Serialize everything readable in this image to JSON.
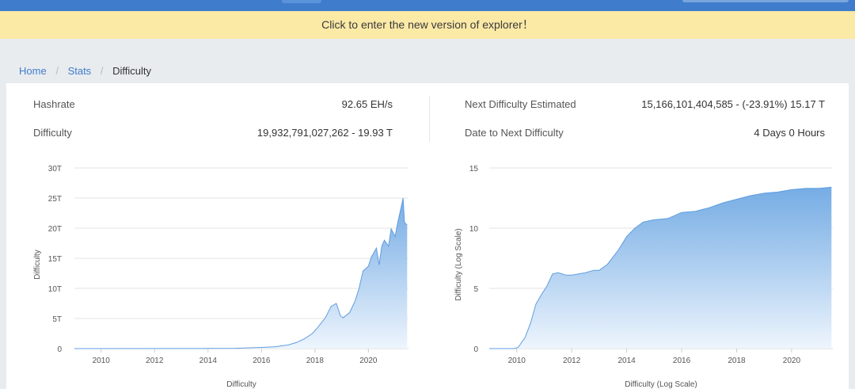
{
  "banner": {
    "text": "Click to enter the new version of explorer！"
  },
  "breadcrumb": {
    "home": "Home",
    "stats": "Stats",
    "current": "Difficulty"
  },
  "stats": {
    "hashrate_label": "Hashrate",
    "hashrate_value": "92.65 EH/s",
    "difficulty_label": "Difficulty",
    "difficulty_value": "19,932,791,027,262 - 19.93 T",
    "next_label": "Next Difficulty Estimated",
    "next_value": "15,166,101,404,585 - (-23.91%) 15.17 T",
    "date_label": "Date to Next Difficulty",
    "date_value": "4 Days 0 Hours"
  },
  "colors": {
    "accent": "#3f7ccb",
    "area_top": "#6ea8e3",
    "area_bottom": "#eef5fd",
    "banner_bg": "#fbe9a6"
  },
  "chart_data": [
    {
      "type": "area",
      "xlabel": "Difficulty",
      "ylabel": "Difficulty",
      "ylim": [
        0,
        30
      ],
      "xlim": [
        2009,
        2021.5
      ],
      "y_ticks": [
        "0",
        "5T",
        "10T",
        "15T",
        "20T",
        "25T",
        "30T"
      ],
      "x_ticks": [
        "2010",
        "2012",
        "2014",
        "2016",
        "2018",
        "2020"
      ],
      "grid": true,
      "x": [
        2009.0,
        2013.0,
        2014.0,
        2015.0,
        2016.0,
        2016.5,
        2017.0,
        2017.3,
        2017.6,
        2017.9,
        2018.1,
        2018.4,
        2018.6,
        2018.8,
        2018.95,
        2019.05,
        2019.3,
        2019.5,
        2019.65,
        2019.8,
        2020.0,
        2020.1,
        2020.3,
        2020.4,
        2020.5,
        2020.6,
        2020.75,
        2020.85,
        2021.0,
        2021.1,
        2021.2,
        2021.3,
        2021.35,
        2021.45
      ],
      "y": [
        0,
        0.01,
        0.03,
        0.05,
        0.2,
        0.3,
        0.6,
        1.0,
        1.6,
        2.5,
        3.5,
        5.2,
        7.0,
        7.5,
        5.5,
        5.1,
        6.0,
        7.9,
        10.0,
        12.9,
        13.7,
        15.1,
        16.7,
        13.9,
        17.0,
        18.0,
        17.0,
        19.9,
        18.6,
        21.0,
        23.0,
        25.0,
        21.0,
        20.5
      ]
    },
    {
      "type": "area",
      "xlabel": "Difficulty (Log Scale)",
      "ylabel": "Difficulty (Log Scale)",
      "ylim": [
        0,
        15
      ],
      "xlim": [
        2009,
        2021.5
      ],
      "y_ticks": [
        "0",
        "5",
        "10",
        "15"
      ],
      "x_ticks": [
        "2010",
        "2012",
        "2014",
        "2016",
        "2018",
        "2020"
      ],
      "grid": true,
      "x": [
        2009.0,
        2009.9,
        2010.05,
        2010.3,
        2010.5,
        2010.7,
        2010.9,
        2011.1,
        2011.3,
        2011.5,
        2011.8,
        2012.0,
        2012.5,
        2012.8,
        2013.0,
        2013.3,
        2013.7,
        2014.0,
        2014.3,
        2014.6,
        2015.0,
        2015.5,
        2016.0,
        2016.5,
        2017.0,
        2017.5,
        2018.0,
        2018.5,
        2019.0,
        2019.5,
        2020.0,
        2020.5,
        2021.0,
        2021.45
      ],
      "y": [
        0,
        0,
        0.1,
        0.9,
        2.1,
        3.7,
        4.5,
        5.2,
        6.2,
        6.3,
        6.1,
        6.1,
        6.3,
        6.5,
        6.5,
        7.0,
        8.2,
        9.3,
        10.0,
        10.5,
        10.7,
        10.8,
        11.3,
        11.4,
        11.7,
        12.1,
        12.4,
        12.7,
        12.9,
        13.0,
        13.2,
        13.3,
        13.3,
        13.4
      ]
    }
  ]
}
